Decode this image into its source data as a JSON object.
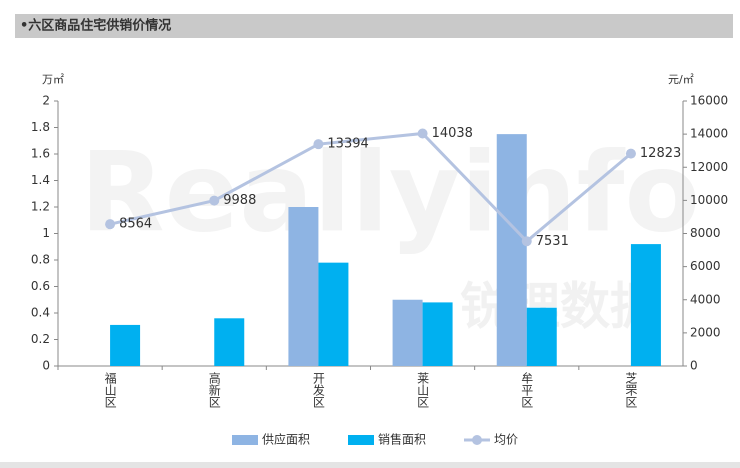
{
  "header": "•六区商品住宅供销价情况",
  "watermark": "Reallyinfo",
  "watermark_cn": "锐理数据",
  "chart_data": {
    "type": "bar-line",
    "y_label": "万㎡",
    "y2_label": "元/㎡",
    "categories": [
      "福山区",
      "高新区",
      "开发区",
      "莱山区",
      "牟平区",
      "芝罘区"
    ],
    "series": [
      {
        "name": "供应面积",
        "type": "bar",
        "color": "#8eb4e3",
        "values": [
          null,
          null,
          1.2,
          0.5,
          1.75,
          null
        ]
      },
      {
        "name": "销售面积",
        "type": "bar",
        "color": "#00b0f0",
        "values": [
          0.31,
          0.36,
          0.78,
          0.48,
          0.44,
          0.92
        ]
      },
      {
        "name": "均价",
        "type": "line",
        "axis": "y2",
        "color": "#b4c3e1",
        "values": [
          8564,
          9988,
          13394,
          14038,
          7531,
          12823
        ],
        "data_labels": true
      }
    ],
    "ylim": [
      0,
      2
    ],
    "yticks": [
      0,
      0.2,
      0.4,
      0.6,
      0.8,
      1,
      1.2,
      1.4,
      1.6,
      1.8,
      2
    ],
    "y2lim": [
      0,
      16000
    ],
    "y2ticks": [
      0,
      2000,
      4000,
      6000,
      8000,
      10000,
      12000,
      14000,
      16000
    ],
    "grid": false,
    "legend": "bottom"
  }
}
